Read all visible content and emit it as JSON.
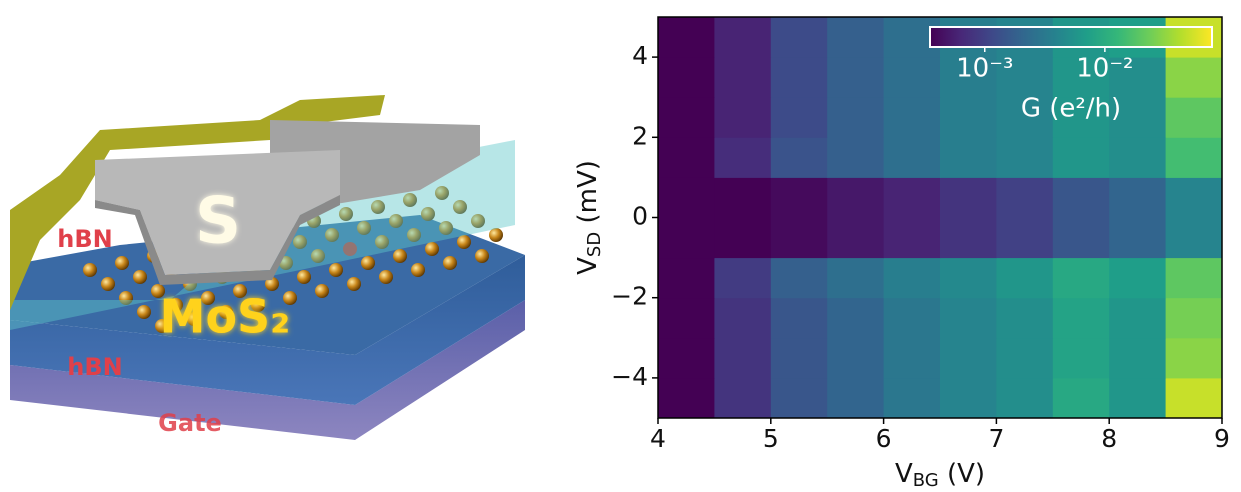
{
  "illustration": {
    "labels": [
      "hBN",
      "S",
      "MoS₂",
      "hBN",
      "Gate"
    ]
  },
  "chart_data": {
    "type": "heatmap",
    "xlabel": [
      "V",
      "BG",
      " (V)"
    ],
    "ylabel": [
      "V",
      "SD",
      " (mV)"
    ],
    "x": [
      4,
      4.5,
      5,
      5.5,
      6,
      6.5,
      7,
      7.5,
      8,
      8.5,
      9
    ],
    "y": [
      -5,
      -4,
      -3,
      -2,
      -1,
      0,
      1,
      2,
      3,
      4,
      5
    ],
    "z": [
      [
        0.0003,
        0.0008,
        0.0015,
        0.002,
        0.003,
        0.004,
        0.005,
        0.009,
        0.006,
        0.05
      ],
      [
        0.0003,
        0.0008,
        0.0015,
        0.002,
        0.003,
        0.004,
        0.005,
        0.008,
        0.006,
        0.03
      ],
      [
        0.0003,
        0.0008,
        0.0015,
        0.002,
        0.003,
        0.004,
        0.005,
        0.008,
        0.006,
        0.025
      ],
      [
        0.0003,
        0.0009,
        0.0018,
        0.0025,
        0.0035,
        0.0045,
        0.006,
        0.009,
        0.007,
        0.02
      ],
      [
        0.0003,
        0.0003,
        0.0004,
        0.0005,
        0.0006,
        0.0008,
        0.001,
        0.0015,
        0.002,
        0.004
      ],
      [
        0.0003,
        0.0003,
        0.0004,
        0.0005,
        0.0006,
        0.0008,
        0.001,
        0.0015,
        0.002,
        0.004
      ],
      [
        0.0003,
        0.0007,
        0.0014,
        0.0018,
        0.0025,
        0.0035,
        0.004,
        0.006,
        0.005,
        0.015
      ],
      [
        0.0003,
        0.0006,
        0.0012,
        0.0018,
        0.0025,
        0.0035,
        0.004,
        0.006,
        0.005,
        0.02
      ],
      [
        0.0003,
        0.0006,
        0.0012,
        0.0018,
        0.0025,
        0.0035,
        0.004,
        0.006,
        0.005,
        0.03
      ],
      [
        0.0003,
        0.0006,
        0.0012,
        0.0018,
        0.0025,
        0.0035,
        0.004,
        0.006,
        0.007,
        0.05
      ]
    ],
    "xlim": [
      4,
      9
    ],
    "ylim": [
      -5,
      5
    ],
    "xticks": [
      4,
      5,
      6,
      7,
      8,
      9
    ],
    "yticks": [
      {
        "value": -4,
        "label": "−4"
      },
      {
        "value": -2,
        "label": "−2"
      },
      0,
      2,
      4
    ],
    "colormap": "viridis",
    "colorbar": {
      "log": true,
      "clim": [
        0.00035,
        0.078
      ],
      "ticks": [
        {
          "value": 0.001,
          "label": "10⁻³"
        },
        {
          "value": 0.01,
          "label": "10⁻²"
        }
      ],
      "label": "G (e²/h)"
    }
  }
}
